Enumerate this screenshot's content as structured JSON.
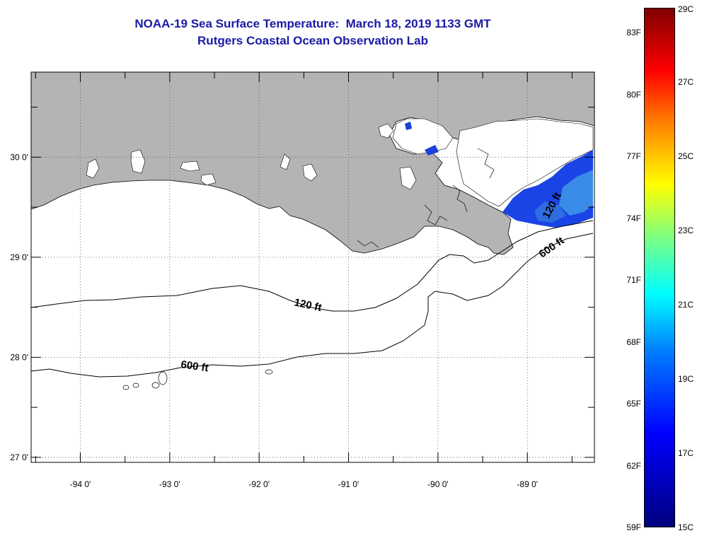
{
  "title": {
    "line1": "NOAA-19 Sea Surface Temperature:  March 18, 2019 1133 GMT",
    "line2": "Rutgers Coastal Ocean Observation Lab"
  },
  "map": {
    "lon_range": [
      -94.55,
      -88.25
    ],
    "lat_range": [
      26.95,
      30.85
    ],
    "lon_ticks": [
      {
        "value": -94,
        "label": "-94 0'"
      },
      {
        "value": -93,
        "label": "-93 0'"
      },
      {
        "value": -92,
        "label": "-92 0'"
      },
      {
        "value": -91,
        "label": "-91 0'"
      },
      {
        "value": -90,
        "label": "-90 0'"
      },
      {
        "value": -89,
        "label": "-89 0'"
      }
    ],
    "lat_ticks": [
      {
        "value": 30,
        "label": "30 0'"
      },
      {
        "value": 29,
        "label": "29 0'"
      },
      {
        "value": 28,
        "label": "28 0'"
      },
      {
        "value": 27,
        "label": "27 0'"
      }
    ],
    "contours": [
      {
        "label": "120 ft",
        "depth_ft": 120
      },
      {
        "label": "600 ft",
        "depth_ft": 600
      }
    ],
    "land_color": "#b4b4b4",
    "ocean_color": "#ffffff",
    "grid": "dotted"
  },
  "colorbar": {
    "fahrenheit": [
      "83F",
      "80F",
      "77F",
      "74F",
      "71F",
      "68F",
      "65F",
      "62F",
      "59F"
    ],
    "celsius": [
      "29C",
      "27C",
      "25C",
      "23C",
      "21C",
      "19C",
      "17C",
      "15C"
    ]
  }
}
